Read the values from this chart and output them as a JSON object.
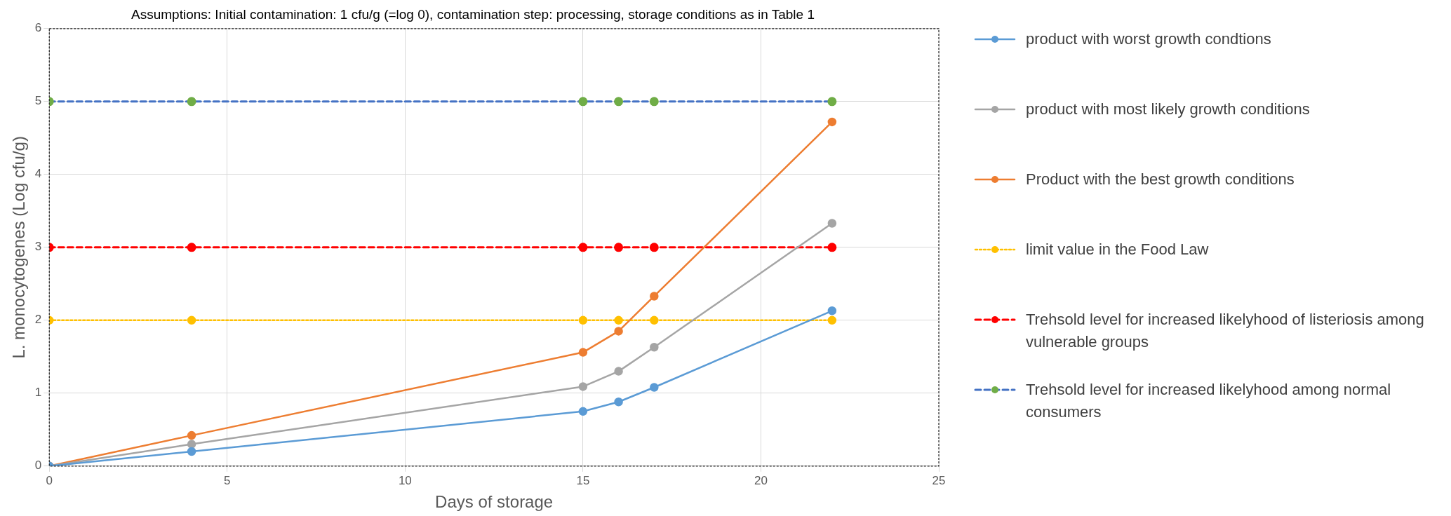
{
  "chart_data": {
    "type": "line",
    "title": "Assumptions: Initial contamination: 1 cfu/g (=log 0), contamination step: processing, storage conditions as in Table 1",
    "xlabel": "Days of storage",
    "ylabel": "L. monocytogenes (Log cfu/g)",
    "xlim": [
      0,
      25
    ],
    "xticks": [
      0,
      5,
      10,
      15,
      20,
      25
    ],
    "ylim": [
      0,
      6
    ],
    "yticks": [
      0,
      1,
      2,
      3,
      4,
      5,
      6
    ],
    "grid": true,
    "legend": "right",
    "marker": "circle",
    "series": [
      {
        "name": "product with worst growth condtions",
        "color": "#5b9bd5",
        "line_style": "solid",
        "x": [
          0,
          4,
          15,
          16,
          17,
          22
        ],
        "values": [
          0,
          0.2,
          0.75,
          0.88,
          1.08,
          2.13
        ]
      },
      {
        "name": "product with most likely growth conditions",
        "color": "#a5a5a5",
        "line_style": "solid",
        "x": [
          0,
          4,
          15,
          16,
          17,
          22
        ],
        "values": [
          0,
          0.3,
          1.09,
          1.3,
          1.63,
          3.33
        ]
      },
      {
        "name": "Product with the best growth conditions",
        "color": "#ed7d31",
        "line_style": "solid",
        "x": [
          0,
          4,
          15,
          16,
          17,
          22
        ],
        "values": [
          0,
          0.42,
          1.56,
          1.85,
          2.33,
          4.72
        ]
      },
      {
        "name": "limit value in the Food Law",
        "color": "#ffc000",
        "line_style": "dotted",
        "x": [
          0,
          4,
          15,
          16,
          17,
          22
        ],
        "values": [
          2,
          2,
          2,
          2,
          2,
          2
        ]
      },
      {
        "name": "Trehsold level for increased likelyhood of listeriosis among vulnerable groups",
        "color": "#ff0000",
        "line_style": "dashed",
        "x": [
          0,
          4,
          15,
          16,
          17,
          22
        ],
        "values": [
          3,
          3,
          3,
          3,
          3,
          3
        ]
      },
      {
        "name": "Trehsold level for increased likelyhood among normal consumers",
        "color": "#4472c4",
        "colors": [
          "#70ad47",
          "#70ad47",
          "#70ad47",
          "#70ad47",
          "#70ad47",
          "#70ad47"
        ],
        "line_style": "dashed",
        "x": [
          0,
          4,
          15,
          16,
          17,
          22
        ],
        "values": [
          5,
          5,
          5,
          5,
          5,
          5
        ]
      }
    ]
  }
}
